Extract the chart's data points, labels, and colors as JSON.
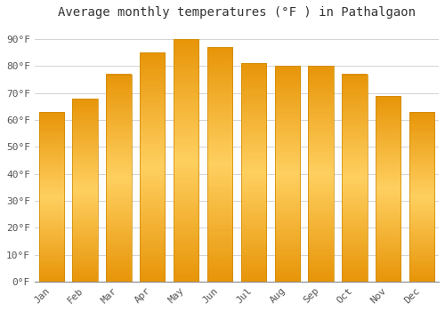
{
  "title": "Average monthly temperatures (°F ) in Pathalgaon",
  "months": [
    "Jan",
    "Feb",
    "Mar",
    "Apr",
    "May",
    "Jun",
    "Jul",
    "Aug",
    "Sep",
    "Oct",
    "Nov",
    "Dec"
  ],
  "values": [
    63,
    68,
    77,
    85,
    90,
    87,
    81,
    80,
    80,
    77,
    69,
    63
  ],
  "bar_color_left": "#F5A800",
  "bar_color_right": "#FFD060",
  "bar_color_main": "#FFC125",
  "ylim": [
    0,
    95
  ],
  "yticks": [
    0,
    10,
    20,
    30,
    40,
    50,
    60,
    70,
    80,
    90
  ],
  "ytick_labels": [
    "0°F",
    "10°F",
    "20°F",
    "30°F",
    "40°F",
    "50°F",
    "60°F",
    "70°F",
    "80°F",
    "90°F"
  ],
  "background_color": "#FFFFFF",
  "grid_color": "#CCCCCC",
  "title_fontsize": 10,
  "tick_fontsize": 8,
  "bar_width": 0.75
}
